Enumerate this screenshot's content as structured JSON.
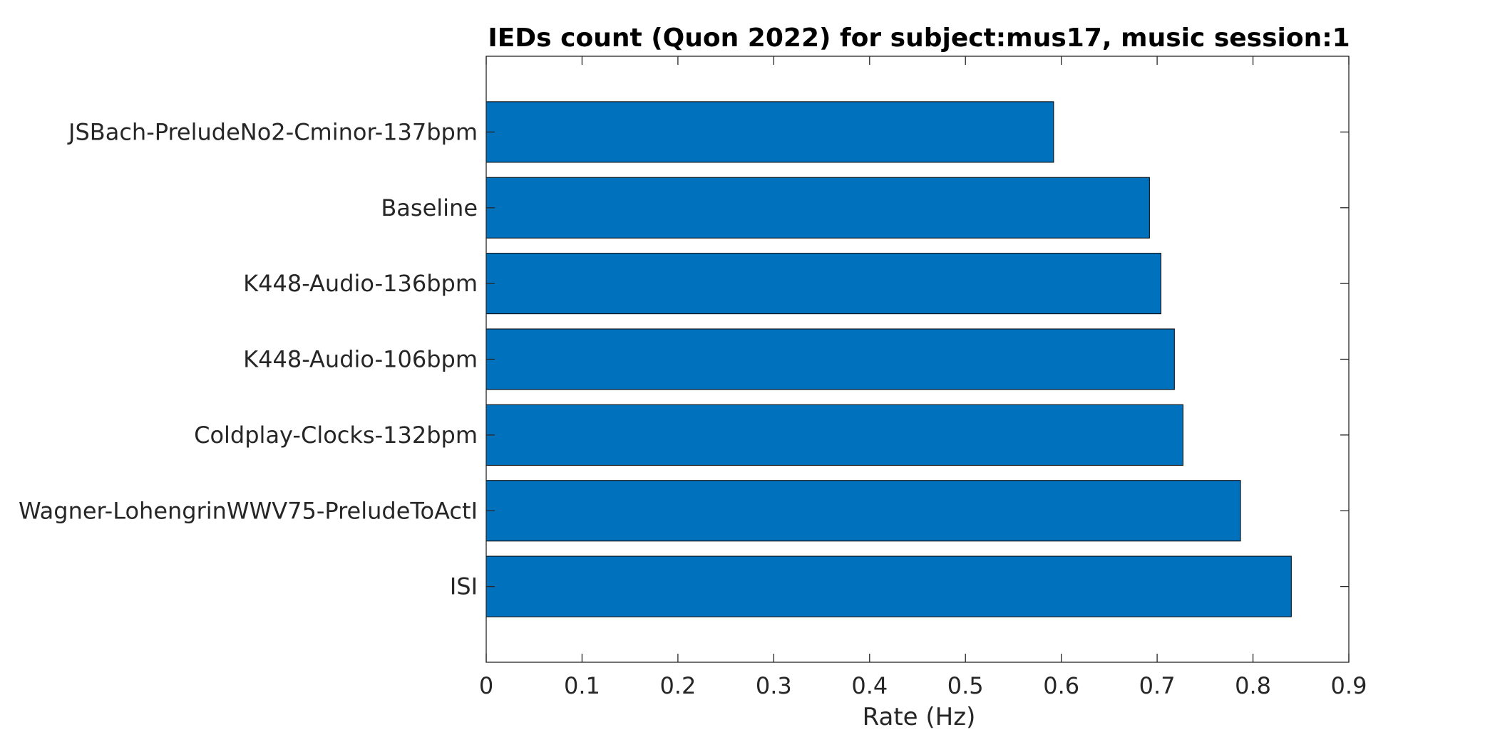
{
  "chart_data": {
    "type": "bar",
    "orientation": "horizontal",
    "title": "IEDs count (Quon 2022) for subject:mus17, music session:1",
    "xlabel": "Rate (Hz)",
    "ylabel": "",
    "xlim": [
      0,
      0.9
    ],
    "xticks": [
      "0",
      "0.1",
      "0.2",
      "0.3",
      "0.4",
      "0.5",
      "0.6",
      "0.7",
      "0.8",
      "0.9"
    ],
    "categories": [
      "JSBach-PreludeNo2-Cminor-137bpm",
      "Baseline",
      "K448-Audio-136bpm",
      "K448-Audio-106bpm",
      "Coldplay-Clocks-132bpm",
      "Wagner-LohengrinWWV75-PreludeToActI",
      "ISI"
    ],
    "values": [
      0.592,
      0.692,
      0.704,
      0.718,
      0.727,
      0.787,
      0.84
    ],
    "bar_color": "#0072BD",
    "bar_edge_color": "#000000",
    "grid": false,
    "legend": "none"
  }
}
